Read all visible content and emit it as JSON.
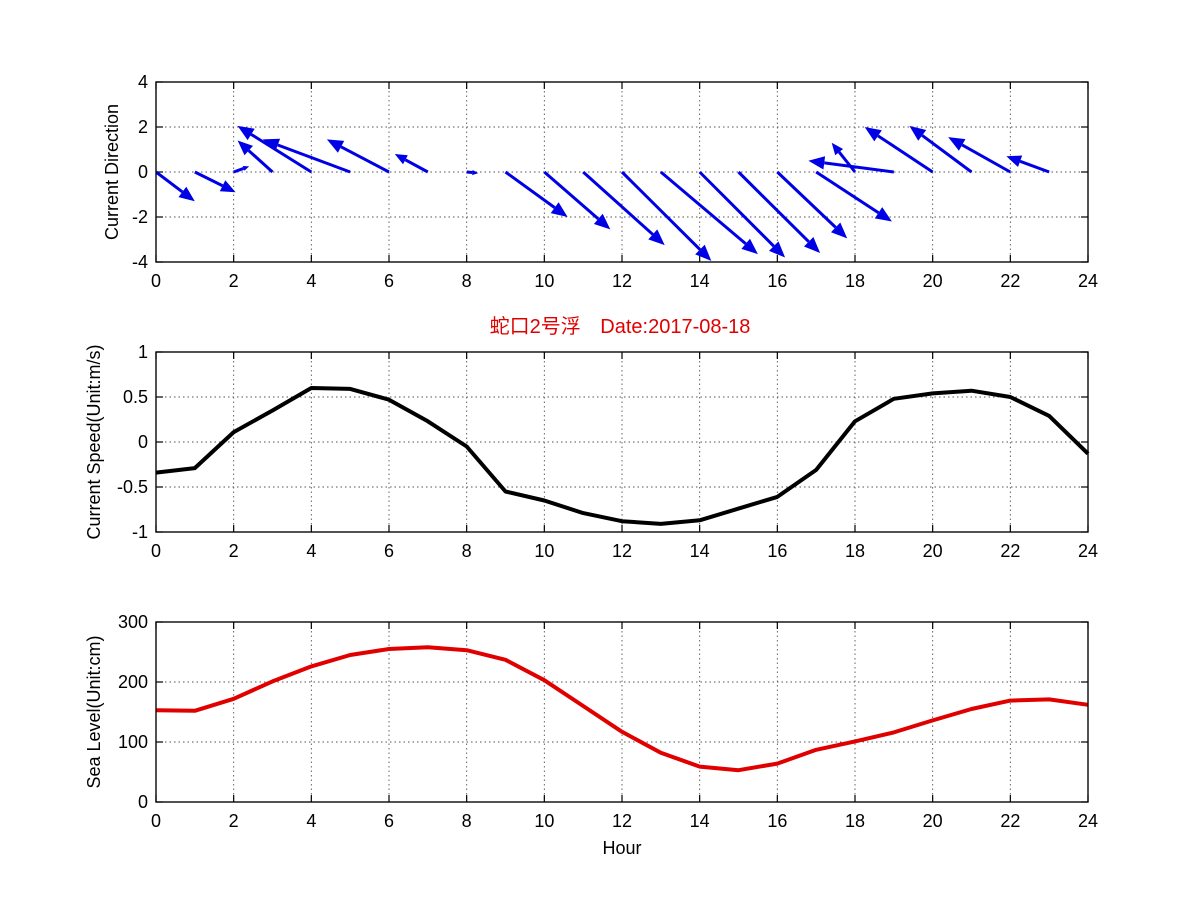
{
  "figure": {
    "title_station": "蛇口2号浮",
    "title_date": "Date:2017-08-18",
    "title_color": "#e00000"
  },
  "chart_data": [
    {
      "type": "quiver",
      "name": "current-direction",
      "ylabel": "Current Direction",
      "xlabel": "",
      "xlim": [
        0,
        24
      ],
      "ylim": [
        -4,
        4
      ],
      "xticks": [
        0,
        2,
        4,
        6,
        8,
        10,
        12,
        14,
        16,
        18,
        20,
        22,
        24
      ],
      "yticks": [
        -4,
        -2,
        0,
        2,
        4
      ],
      "grid": true,
      "color": "#0000e6",
      "arrows": [
        {
          "x": 0,
          "u": 1.0,
          "v": -1.3
        },
        {
          "x": 1,
          "u": 1.05,
          "v": -0.9
        },
        {
          "x": 2,
          "u": 0.4,
          "v": 0.25
        },
        {
          "x": 3,
          "u": -0.9,
          "v": 1.4
        },
        {
          "x": 4,
          "u": -1.9,
          "v": 2.05
        },
        {
          "x": 5,
          "u": -2.25,
          "v": 1.45
        },
        {
          "x": 6,
          "u": -1.6,
          "v": 1.45
        },
        {
          "x": 7,
          "u": -0.85,
          "v": 0.8
        },
        {
          "x": 8,
          "u": 0.3,
          "v": -0.05
        },
        {
          "x": 9,
          "u": 1.6,
          "v": -2.0
        },
        {
          "x": 10,
          "u": 1.7,
          "v": -2.55
        },
        {
          "x": 11,
          "u": 2.1,
          "v": -3.25
        },
        {
          "x": 12,
          "u": 2.3,
          "v": -3.95
        },
        {
          "x": 13,
          "u": 2.5,
          "v": -3.65
        },
        {
          "x": 14,
          "u": 2.2,
          "v": -3.8
        },
        {
          "x": 15,
          "u": 2.1,
          "v": -3.6
        },
        {
          "x": 16,
          "u": 1.8,
          "v": -2.95
        },
        {
          "x": 17,
          "u": 1.95,
          "v": -2.2
        },
        {
          "x": 18,
          "u": -0.6,
          "v": 1.3
        },
        {
          "x": 19,
          "u": -2.2,
          "v": 0.5
        },
        {
          "x": 20,
          "u": -1.75,
          "v": 2.0
        },
        {
          "x": 21,
          "u": -1.6,
          "v": 2.05
        },
        {
          "x": 22,
          "u": -1.6,
          "v": 1.55
        },
        {
          "x": 23,
          "u": -1.1,
          "v": 0.7
        }
      ]
    },
    {
      "type": "line",
      "name": "current-speed",
      "ylabel": "Current Speed(Unit:m/s)",
      "xlabel": "",
      "xlim": [
        0,
        24
      ],
      "ylim": [
        -1,
        1
      ],
      "xticks": [
        0,
        2,
        4,
        6,
        8,
        10,
        12,
        14,
        16,
        18,
        20,
        22,
        24
      ],
      "yticks": [
        -1,
        -0.5,
        0,
        0.5,
        1
      ],
      "ytick_labels": [
        "-1",
        "-0.5",
        "0",
        "0.5",
        "1"
      ],
      "grid": true,
      "color": "#000000",
      "x": [
        0,
        1,
        2,
        3,
        4,
        5,
        6,
        7,
        8,
        9,
        10,
        11,
        12,
        13,
        14,
        15,
        16,
        17,
        18,
        19,
        20,
        21,
        22,
        23,
        24
      ],
      "y": [
        -0.34,
        -0.29,
        0.11,
        0.35,
        0.6,
        0.59,
        0.47,
        0.23,
        -0.05,
        -0.55,
        -0.65,
        -0.79,
        -0.88,
        -0.91,
        -0.87,
        -0.74,
        -0.61,
        -0.31,
        0.23,
        0.48,
        0.54,
        0.57,
        0.5,
        0.29,
        -0.13
      ]
    },
    {
      "type": "line",
      "name": "sea-level",
      "ylabel": "Sea Level(Unit:cm)",
      "xlabel": "Hour",
      "xlim": [
        0,
        24
      ],
      "ylim": [
        0,
        300
      ],
      "xticks": [
        0,
        2,
        4,
        6,
        8,
        10,
        12,
        14,
        16,
        18,
        20,
        22,
        24
      ],
      "yticks": [
        0,
        100,
        200,
        300
      ],
      "grid": true,
      "color": "#e00000",
      "x": [
        0,
        1,
        2,
        3,
        4,
        5,
        6,
        7,
        8,
        9,
        10,
        11,
        12,
        13,
        14,
        15,
        16,
        17,
        18,
        19,
        20,
        21,
        22,
        23,
        24
      ],
      "y": [
        153,
        152,
        172,
        201,
        226,
        245,
        255,
        258,
        253,
        237,
        203,
        160,
        117,
        82,
        59,
        53,
        64,
        87,
        101,
        116,
        136,
        155,
        169,
        171,
        162
      ]
    }
  ]
}
